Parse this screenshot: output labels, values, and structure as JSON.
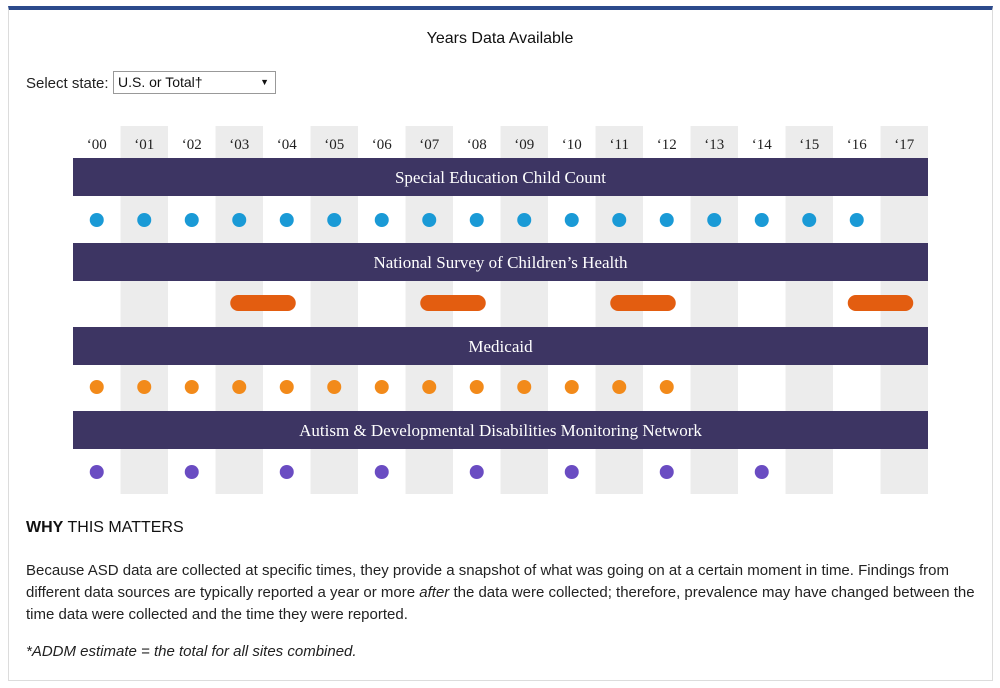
{
  "title": "Years Data Available",
  "state_select": {
    "label": "Select state:",
    "value": "U.S. or Total†"
  },
  "chart_data": {
    "type": "timeline",
    "categories": [
      "‘00",
      "‘01",
      "‘02",
      "‘03",
      "‘04",
      "‘05",
      "‘06",
      "‘07",
      "‘08",
      "‘09",
      "‘10",
      "‘11",
      "‘12",
      "‘13",
      "‘14",
      "‘15",
      "‘16",
      "‘17"
    ],
    "series": [
      {
        "name": "Special Education Child Count",
        "marker": "dot",
        "color": "#1a9ad6",
        "years": [
          0,
          1,
          2,
          3,
          4,
          5,
          6,
          7,
          8,
          9,
          10,
          11,
          12,
          13,
          14,
          15,
          16
        ]
      },
      {
        "name": "National Survey of Children’s Health",
        "marker": "range",
        "color": "#e35d10",
        "ranges": [
          [
            3,
            4
          ],
          [
            7,
            8
          ],
          [
            11,
            12
          ],
          [
            16,
            17
          ]
        ]
      },
      {
        "name": "Medicaid",
        "marker": "dot",
        "color": "#f28a1a",
        "years": [
          0,
          1,
          2,
          3,
          4,
          5,
          6,
          7,
          8,
          9,
          10,
          11,
          12
        ]
      },
      {
        "name": "Autism & Developmental Disabilities Monitoring Network",
        "marker": "dot",
        "color": "#6a4cc2",
        "years": [
          0,
          2,
          4,
          6,
          8,
          10,
          12,
          14
        ]
      }
    ],
    "band_color": "#3d3563",
    "stripe_color": "#ececec"
  },
  "why": {
    "bold": "WHY",
    "rest": " THIS MATTERS"
  },
  "paragraph": {
    "before": "Because ASD data are collected at specific times, they provide a snapshot of what was going on at a certain moment in time. Findings from different data sources are typically reported a year or more ",
    "emph": "after",
    "after": " the data were collected; therefore, prevalence may have changed between the time data were collected and the time they were reported."
  },
  "footnote": "*ADDM estimate = the total for all sites combined."
}
